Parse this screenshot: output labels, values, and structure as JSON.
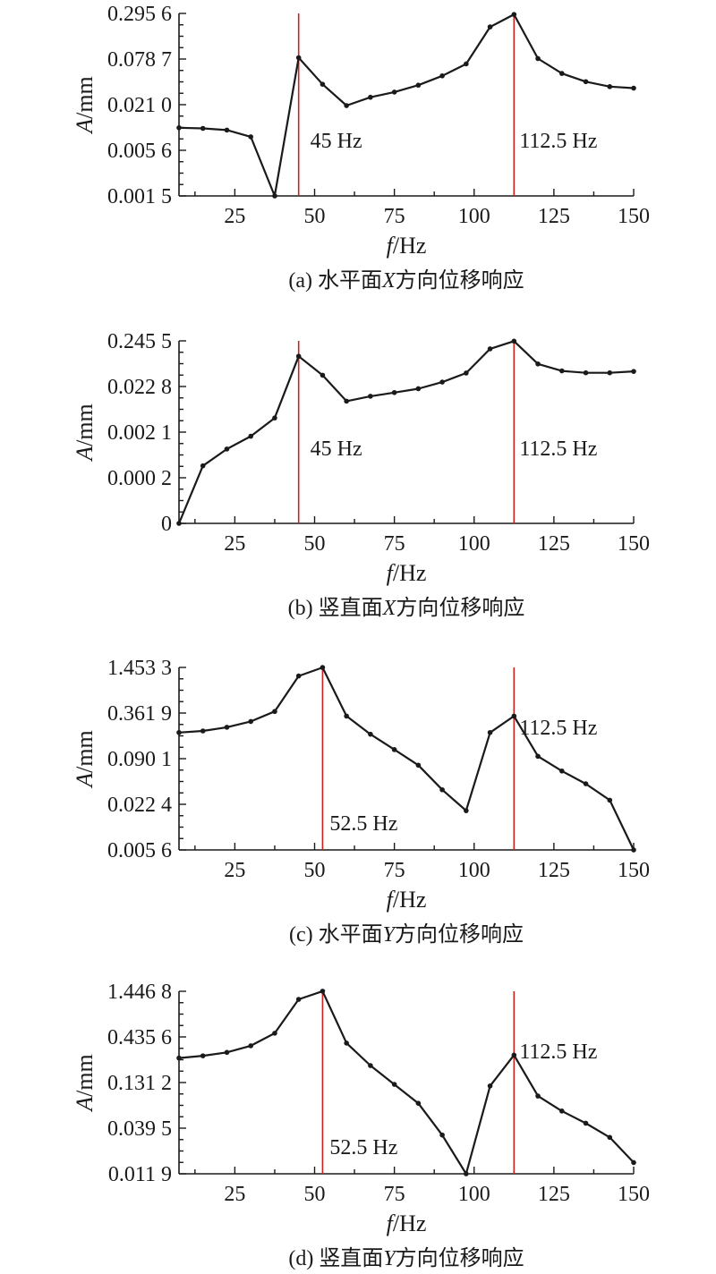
{
  "colors": {
    "line": "#1a1a1a",
    "marker": "#cc2222"
  },
  "chart_data": [
    {
      "type": "line",
      "panel": "a",
      "caption_parts": [
        "(a) 水平面",
        "X",
        "方向位移响应"
      ],
      "xlabel_parts": [
        "f",
        "/Hz"
      ],
      "ylabel_parts": [
        "A",
        "/mm"
      ],
      "xlim": [
        7.5,
        150
      ],
      "x_ticks": [
        "25",
        "50",
        "75",
        "100",
        "125",
        "150"
      ],
      "y_ticks": [
        "0.001 5",
        "0.005 6",
        "0.021 0",
        "0.078 7",
        "0.295 6"
      ],
      "y_scale": "log",
      "y_tick_values": [
        0.0015,
        0.0056,
        0.021,
        0.0787,
        0.2956
      ],
      "x": [
        7.5,
        15,
        22.5,
        30,
        37.5,
        45,
        52.5,
        60,
        67.5,
        75,
        82.5,
        90,
        97.5,
        105,
        112.5,
        120,
        127.5,
        135,
        142.5,
        150
      ],
      "y": [
        0.0108,
        0.0106,
        0.0101,
        0.0083,
        0.0015,
        0.082,
        0.038,
        0.0205,
        0.0261,
        0.0303,
        0.037,
        0.0485,
        0.0685,
        0.2,
        0.287,
        0.08,
        0.052,
        0.041,
        0.0355,
        0.034
      ],
      "markers": [
        {
          "x": 45,
          "label": "45 Hz"
        },
        {
          "x": 112.5,
          "label": "112.5 Hz"
        }
      ]
    },
    {
      "type": "line",
      "panel": "b",
      "caption_parts": [
        "(b) 竖直面",
        "X",
        "方向位移响应"
      ],
      "xlabel_parts": [
        "f",
        "/Hz"
      ],
      "ylabel_parts": [
        "A",
        "/mm"
      ],
      "xlim": [
        7.5,
        150
      ],
      "x_ticks": [
        "25",
        "50",
        "75",
        "100",
        "125",
        "150"
      ],
      "y_ticks": [
        "0",
        "0.000 2",
        "0.002 1",
        "0.022 8",
        "0.245 5"
      ],
      "y_scale": "tick-spaced",
      "y_tick_values": [
        0,
        0.0002,
        0.0021,
        0.0228,
        0.2455
      ],
      "x": [
        7.5,
        15,
        22.5,
        30,
        37.5,
        45,
        52.5,
        60,
        67.5,
        75,
        82.5,
        90,
        97.5,
        105,
        112.5,
        120,
        127.5,
        135,
        142.5,
        150
      ],
      "y": [
        0,
        0.00037,
        0.00088,
        0.0017,
        0.0044,
        0.11,
        0.041,
        0.0106,
        0.0137,
        0.0166,
        0.0203,
        0.0287,
        0.0459,
        0.162,
        0.242,
        0.0738,
        0.0514,
        0.0465,
        0.0465,
        0.05
      ],
      "markers": [
        {
          "x": 45,
          "label": "45 Hz"
        },
        {
          "x": 112.5,
          "label": "112.5 Hz"
        }
      ]
    },
    {
      "type": "line",
      "panel": "c",
      "caption_parts": [
        "(c) 水平面",
        "Y",
        "方向位移响应"
      ],
      "xlabel_parts": [
        "f",
        "/Hz"
      ],
      "ylabel_parts": [
        "A",
        "/mm"
      ],
      "xlim": [
        7.5,
        150
      ],
      "x_ticks": [
        "25",
        "50",
        "75",
        "100",
        "125",
        "150"
      ],
      "y_ticks": [
        "0.005 6",
        "0.022 4",
        "0.090 1",
        "0.361 9",
        "1.453 3"
      ],
      "y_scale": "log",
      "y_tick_values": [
        0.0056,
        0.0224,
        0.0901,
        0.3619,
        1.4533
      ],
      "x": [
        7.5,
        15,
        22.5,
        30,
        37.5,
        45,
        52.5,
        60,
        67.5,
        75,
        82.5,
        90,
        97.5,
        105,
        112.5,
        120,
        127.5,
        135,
        142.5,
        150
      ],
      "y": [
        0.2,
        0.21,
        0.235,
        0.28,
        0.38,
        1.12,
        1.45,
        0.33,
        0.19,
        0.119,
        0.074,
        0.035,
        0.0185,
        0.2,
        0.33,
        0.097,
        0.062,
        0.042,
        0.0255,
        0.0056
      ],
      "markers": [
        {
          "x": 52.5,
          "label": "52.5 Hz"
        },
        {
          "x": 112.5,
          "label": "112.5 Hz"
        }
      ]
    },
    {
      "type": "line",
      "panel": "d",
      "caption_parts": [
        "(d) 竖直面",
        "Y",
        "方向位移响应"
      ],
      "xlabel_parts": [
        "f",
        "/Hz"
      ],
      "ylabel_parts": [
        "A",
        "/mm"
      ],
      "xlim": [
        7.5,
        150
      ],
      "x_ticks": [
        "25",
        "50",
        "75",
        "100",
        "125",
        "150"
      ],
      "y_ticks": [
        "0.011 9",
        "0.039 5",
        "0.131 2",
        "0.435 6",
        "1.446 8"
      ],
      "y_scale": "log",
      "y_tick_values": [
        0.0119,
        0.0395,
        0.1312,
        0.4356,
        1.4468
      ],
      "x": [
        7.5,
        15,
        22.5,
        30,
        37.5,
        45,
        52.5,
        60,
        67.5,
        75,
        82.5,
        90,
        97.5,
        105,
        112.5,
        120,
        127.5,
        135,
        142.5,
        150
      ],
      "y": [
        0.25,
        0.265,
        0.29,
        0.345,
        0.48,
        1.17,
        1.45,
        0.37,
        0.205,
        0.125,
        0.076,
        0.033,
        0.0119,
        0.12,
        0.27,
        0.092,
        0.062,
        0.045,
        0.031,
        0.016
      ],
      "markers": [
        {
          "x": 52.5,
          "label": "52.5 Hz"
        },
        {
          "x": 112.5,
          "label": "112.5 Hz"
        }
      ]
    }
  ]
}
